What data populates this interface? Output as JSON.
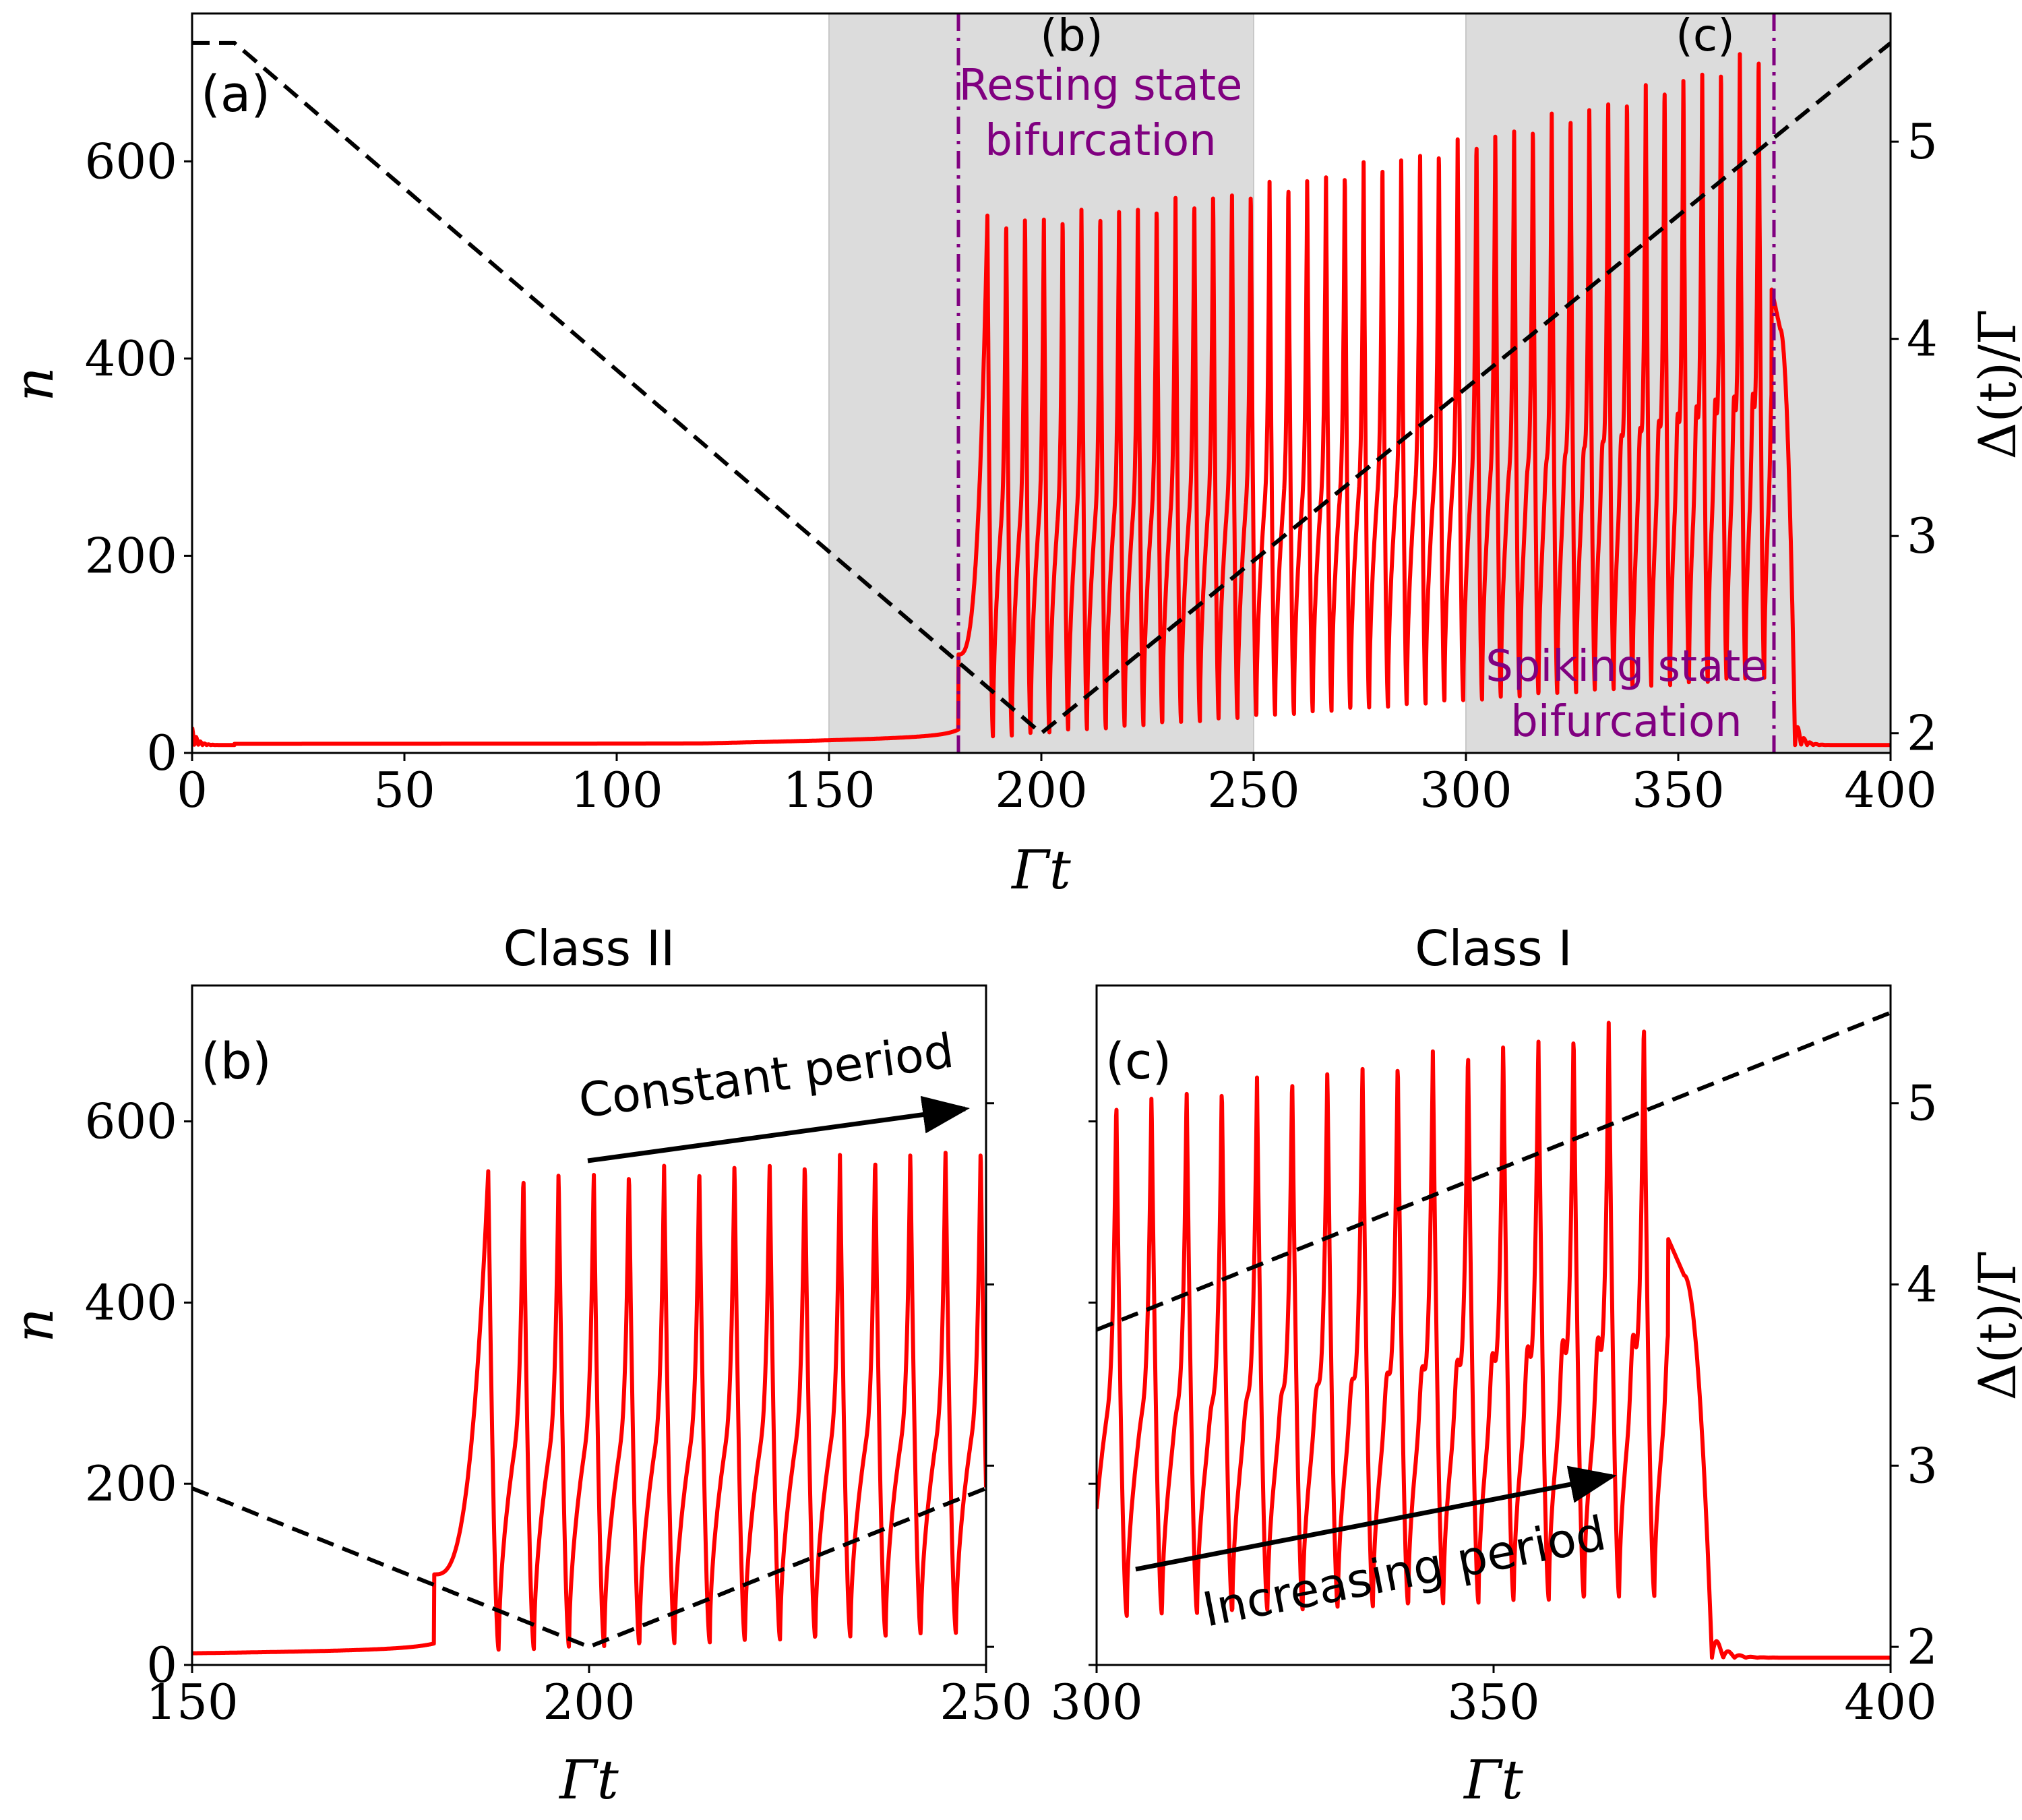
{
  "chart_data": [
    {
      "type": "line",
      "panel_label": "(a)",
      "title": "",
      "xlabel": "Γt",
      "ylabel": "n",
      "ylabel_right": "Δ(t)/Γ",
      "xlim": [
        0,
        400
      ],
      "ylim": [
        0,
        750
      ],
      "ylim_right": [
        1.9,
        5.65
      ],
      "xticks": [
        "0",
        "50",
        "100",
        "150",
        "200",
        "250",
        "300",
        "350",
        "400"
      ],
      "yticks": [
        "0",
        "200",
        "400",
        "600"
      ],
      "yticks_right": [
        "2",
        "3",
        "4",
        "5"
      ],
      "shaded_regions": [
        {
          "x": [
            150,
            250
          ],
          "label": "(b)"
        },
        {
          "x": [
            300,
            400
          ],
          "label": "(c)"
        }
      ],
      "vlines": [
        {
          "x": 180.5,
          "label": [
            "Resting state",
            "bifurcation"
          ]
        },
        {
          "x": 372.5,
          "label": [
            "Spiking state",
            "bifurcation"
          ]
        }
      ],
      "series": [
        {
          "name": "n",
          "style": "solid red",
          "description": "low branch ~10 rising to ~100 at Γt≈180, then relaxation spikes ~4.4 units apart from Γt≈187 to ≈372 with growing amplitude (peaks ≈545→720), then decay to ≈8 after Γt≈378"
        },
        {
          "name": "Δ(t)/Γ",
          "style": "dashed black",
          "axis": "right",
          "points": [
            [
              0,
              5.5
            ],
            [
              10,
              5.5
            ],
            [
              200,
              2.0
            ],
            [
              400,
              5.5
            ]
          ]
        }
      ]
    },
    {
      "type": "line",
      "panel_label": "(b)",
      "title": "Class II",
      "xlabel": "Γt",
      "ylabel": "n",
      "xlim": [
        150,
        250
      ],
      "ylim": [
        0,
        750
      ],
      "xticks": [
        "150",
        "200",
        "250"
      ],
      "yticks": [
        "0",
        "200",
        "400",
        "600"
      ],
      "annotation": "Constant period",
      "series": [
        {
          "name": "n",
          "style": "solid red"
        },
        {
          "name": "Δ(t)/Γ",
          "style": "dashed black",
          "axis": "right",
          "points": [
            [
              150,
              2.875
            ],
            [
              200,
              2.0
            ],
            [
              250,
              2.875
            ]
          ]
        }
      ]
    },
    {
      "type": "line",
      "panel_label": "(c)",
      "title": "Class I",
      "xlabel": "Γt",
      "ylabel_right": "Δ(t)/Γ",
      "xlim": [
        300,
        400
      ],
      "ylim": [
        0,
        750
      ],
      "ylim_right": [
        1.9,
        5.65
      ],
      "xticks": [
        "300",
        "350",
        "400"
      ],
      "yticks_right": [
        "2",
        "3",
        "4",
        "5"
      ],
      "annotation": "Increasing period",
      "series": [
        {
          "name": "n",
          "style": "solid red"
        },
        {
          "name": "Δ(t)/Γ",
          "style": "dashed black",
          "axis": "right",
          "points": [
            [
              300,
              3.75
            ],
            [
              400,
              5.5
            ]
          ]
        }
      ]
    }
  ]
}
